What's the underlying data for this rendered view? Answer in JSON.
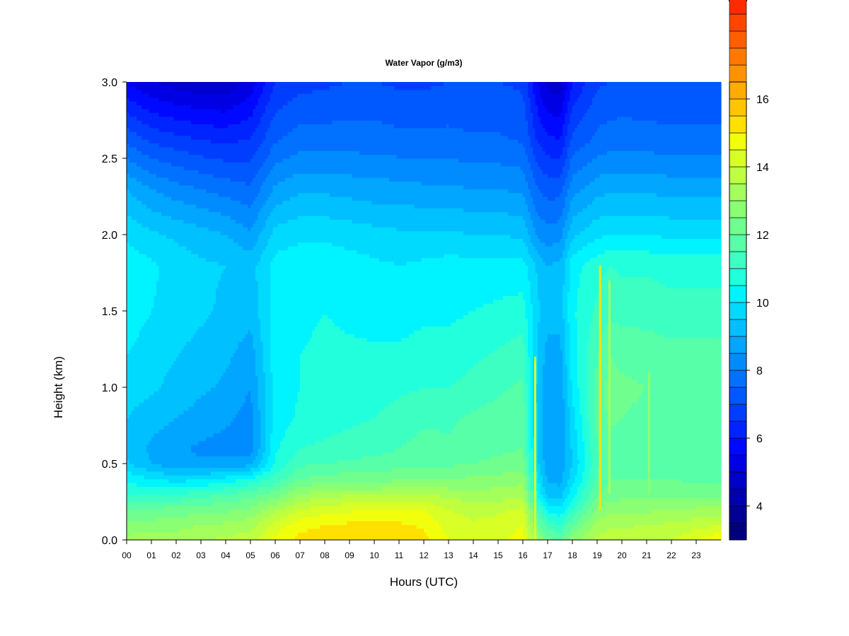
{
  "chart_data": {
    "type": "heatmap",
    "title": "Water Vapor (g/m3)",
    "xlabel": "Hours (UTC)",
    "ylabel": "Height (km)",
    "xlim": [
      0,
      24
    ],
    "ylim": [
      0,
      3
    ],
    "x_ticks": [
      "00",
      "01",
      "02",
      "03",
      "04",
      "05",
      "06",
      "07",
      "08",
      "09",
      "10",
      "11",
      "12",
      "13",
      "14",
      "15",
      "16",
      "17",
      "18",
      "19",
      "20",
      "21",
      "22",
      "23"
    ],
    "y_ticks": [
      "0.0",
      "0.5",
      "1.0",
      "1.5",
      "2.0",
      "2.5",
      "3.0"
    ],
    "colorbar": {
      "range": [
        3,
        16.5
      ],
      "step": 0.5,
      "ticks": [
        "4",
        "6",
        "8",
        "10",
        "12",
        "14",
        "16"
      ],
      "colors": [
        "#00007f",
        "#000097",
        "#0000b1",
        "#0000cb",
        "#0000e5",
        "#0008ff",
        "#0024ff",
        "#003eff",
        "#0058ff",
        "#0072ff",
        "#008cff",
        "#00a6ff",
        "#00c0ff",
        "#00daff",
        "#00f4ff",
        "#22ffdd",
        "#3dffc1",
        "#56ffa8",
        "#70ff8e",
        "#8aff74",
        "#a4ff5a",
        "#beff40",
        "#d8ff26",
        "#f2ff0c",
        "#ffe000",
        "#ffc600",
        "#ffac00",
        "#ff9200",
        "#ff7800",
        "#ff5e00",
        "#ff4400",
        "#ff2a00",
        "#ff0f00",
        "#e90000",
        "#cf0000",
        "#b50000",
        "#9b0000",
        "#810000"
      ]
    },
    "heights_km": [
      0.0,
      0.1,
      0.2,
      0.3,
      0.4,
      0.5,
      0.6,
      0.8,
      1.0,
      1.2,
      1.5,
      1.8,
      2.0,
      2.3,
      2.6,
      3.0
    ],
    "profiles": [
      {
        "hour": 0.0,
        "values": [
          13.2,
          12.6,
          12.0,
          11.0,
          10.4,
          9.6,
          9.4,
          9.5,
          9.8,
          10.0,
          10.2,
          10.3,
          9.9,
          9.0,
          7.5,
          5.5
        ]
      },
      {
        "hour": 1.0,
        "values": [
          13.3,
          12.7,
          12.1,
          10.9,
          10.0,
          9.0,
          8.9,
          9.2,
          9.6,
          9.8,
          10.0,
          10.1,
          9.6,
          8.5,
          7.0,
          5.0
        ]
      },
      {
        "hour": 2.0,
        "values": [
          13.3,
          12.8,
          12.2,
          11.0,
          9.8,
          8.7,
          8.6,
          9.0,
          9.3,
          9.5,
          9.8,
          9.8,
          9.4,
          8.2,
          6.8,
          4.8
        ]
      },
      {
        "hour": 3.0,
        "values": [
          13.5,
          13.0,
          12.3,
          11.3,
          9.9,
          8.6,
          8.4,
          8.8,
          9.1,
          9.3,
          9.6,
          9.6,
          9.2,
          8.0,
          6.6,
          4.6
        ]
      },
      {
        "hour": 4.0,
        "values": [
          13.6,
          13.1,
          12.4,
          11.5,
          10.2,
          8.7,
          8.3,
          8.6,
          8.9,
          9.1,
          9.4,
          9.5,
          9.0,
          7.8,
          6.5,
          4.6
        ]
      },
      {
        "hour": 5.0,
        "values": [
          13.8,
          13.3,
          12.6,
          11.8,
          10.6,
          8.8,
          8.2,
          8.3,
          8.5,
          8.7,
          9.2,
          9.3,
          8.6,
          7.6,
          6.6,
          5.2
        ]
      },
      {
        "hour": 6.0,
        "values": [
          14.6,
          14.2,
          13.4,
          12.2,
          11.2,
          10.6,
          10.4,
          10.2,
          10.2,
          10.3,
          10.2,
          10.2,
          9.7,
          8.6,
          7.5,
          6.5
        ]
      },
      {
        "hour": 7.0,
        "values": [
          15.2,
          14.8,
          14.0,
          13.0,
          12.0,
          11.4,
          11.0,
          10.6,
          10.5,
          10.5,
          10.4,
          10.3,
          9.9,
          8.9,
          7.8,
          6.8
        ]
      },
      {
        "hour": 8.0,
        "values": [
          15.3,
          15.0,
          14.3,
          13.3,
          12.2,
          11.5,
          11.1,
          10.8,
          10.7,
          10.6,
          10.5,
          10.3,
          9.9,
          8.9,
          7.8,
          6.9
        ]
      },
      {
        "hour": 9.0,
        "values": [
          15.4,
          15.1,
          14.4,
          13.4,
          12.3,
          11.6,
          11.2,
          10.9,
          10.8,
          10.6,
          10.4,
          10.2,
          9.8,
          8.8,
          7.8,
          7.0
        ]
      },
      {
        "hour": 10.0,
        "values": [
          15.5,
          15.2,
          14.5,
          13.4,
          12.3,
          11.7,
          11.3,
          11.0,
          10.8,
          10.6,
          10.3,
          10.1,
          9.7,
          8.7,
          7.8,
          7.0
        ]
      },
      {
        "hour": 11.0,
        "values": [
          15.4,
          15.1,
          14.5,
          13.4,
          12.4,
          11.8,
          11.5,
          11.2,
          10.9,
          10.6,
          10.3,
          10.0,
          9.6,
          8.7,
          7.7,
          6.9
        ]
      },
      {
        "hour": 12.0,
        "values": [
          15.2,
          14.9,
          14.5,
          13.6,
          12.5,
          11.9,
          11.7,
          11.4,
          11.0,
          10.7,
          10.4,
          10.1,
          9.6,
          8.6,
          7.7,
          6.9
        ]
      },
      {
        "hour": 13.0,
        "values": [
          14.5,
          14.3,
          14.0,
          13.3,
          12.5,
          11.9,
          11.6,
          11.4,
          11.0,
          10.7,
          10.4,
          10.2,
          9.6,
          8.6,
          7.7,
          7.0
        ]
      },
      {
        "hour": 14.0,
        "values": [
          14.2,
          14.1,
          13.8,
          13.2,
          12.6,
          12.0,
          11.8,
          11.6,
          11.2,
          10.9,
          10.5,
          10.2,
          9.5,
          8.5,
          7.6,
          7.0
        ]
      },
      {
        "hour": 15.0,
        "values": [
          14.4,
          14.2,
          13.9,
          13.2,
          12.7,
          12.1,
          11.9,
          11.7,
          11.4,
          11.1,
          10.6,
          10.2,
          9.5,
          8.5,
          7.6,
          7.0
        ]
      },
      {
        "hour": 16.0,
        "values": [
          14.7,
          14.5,
          14.1,
          13.4,
          12.8,
          12.3,
          12.0,
          11.8,
          11.6,
          11.3,
          10.7,
          10.2,
          9.4,
          8.4,
          7.5,
          6.9
        ]
      },
      {
        "hour": 16.6,
        "values": [
          13.0,
          12.2,
          11.3,
          10.4,
          10.0,
          9.6,
          9.4,
          9.3,
          9.3,
          9.4,
          9.6,
          9.4,
          8.4,
          7.5,
          6.5,
          5.5
        ]
      },
      {
        "hour": 17.0,
        "values": [
          12.2,
          11.3,
          10.3,
          9.3,
          8.9,
          8.7,
          8.6,
          8.6,
          8.7,
          8.8,
          9.2,
          9.0,
          8.2,
          7.3,
          6.2,
          4.8
        ]
      },
      {
        "hour": 17.5,
        "values": [
          12.0,
          11.0,
          10.1,
          9.3,
          8.8,
          8.6,
          8.5,
          8.5,
          8.6,
          8.8,
          9.2,
          9.1,
          8.3,
          7.3,
          6.1,
          4.7
        ]
      },
      {
        "hour": 18.0,
        "values": [
          12.8,
          11.9,
          11.0,
          10.3,
          9.8,
          9.5,
          9.6,
          9.8,
          10.1,
          10.3,
          10.4,
          10.3,
          9.4,
          8.3,
          7.2,
          6.0
        ]
      },
      {
        "hour": 19.0,
        "values": [
          13.6,
          13.2,
          12.6,
          12.0,
          11.6,
          11.4,
          11.5,
          11.7,
          11.7,
          11.5,
          11.1,
          10.8,
          9.9,
          8.8,
          7.7,
          6.9
        ]
      },
      {
        "hour": 19.5,
        "values": [
          13.8,
          13.4,
          12.8,
          12.2,
          12.0,
          11.8,
          11.8,
          12.1,
          12.2,
          12.0,
          11.4,
          11.0,
          10.0,
          8.9,
          7.8,
          7.0
        ]
      },
      {
        "hour": 20.0,
        "values": [
          13.8,
          13.4,
          12.9,
          12.3,
          12.0,
          11.8,
          11.8,
          12.0,
          12.1,
          11.9,
          11.3,
          10.9,
          10.0,
          8.9,
          7.8,
          7.1
        ]
      },
      {
        "hour": 21.0,
        "values": [
          13.9,
          13.5,
          12.9,
          12.3,
          12.0,
          11.7,
          11.7,
          11.9,
          12.0,
          11.8,
          11.3,
          10.9,
          10.0,
          8.9,
          7.8,
          7.0
        ]
      },
      {
        "hour": 22.0,
        "values": [
          14.0,
          13.6,
          13.0,
          12.3,
          12.0,
          11.7,
          11.6,
          11.8,
          11.9,
          11.7,
          11.2,
          10.8,
          9.9,
          8.8,
          7.7,
          7.0
        ]
      },
      {
        "hour": 23.0,
        "values": [
          14.5,
          13.8,
          13.1,
          12.3,
          11.9,
          11.7,
          11.7,
          11.9,
          11.9,
          11.7,
          11.2,
          10.8,
          9.9,
          8.8,
          7.7,
          7.0
        ]
      },
      {
        "hour": 24.0,
        "values": [
          15.0,
          14.0,
          13.2,
          12.3,
          11.9,
          11.7,
          11.7,
          11.9,
          11.9,
          11.7,
          11.2,
          10.8,
          9.9,
          8.8,
          7.7,
          7.0
        ]
      }
    ],
    "spikes": [
      {
        "hour": 16.5,
        "from_km": 0.0,
        "to_km": 1.2,
        "value": 14.2
      },
      {
        "hour": 19.12,
        "from_km": 0.2,
        "to_km": 1.8,
        "value": 15.2
      },
      {
        "hour": 19.5,
        "from_km": 0.3,
        "to_km": 1.7,
        "value": 13.4
      },
      {
        "hour": 21.1,
        "from_km": 0.3,
        "to_km": 1.1,
        "value": 12.9
      }
    ]
  }
}
